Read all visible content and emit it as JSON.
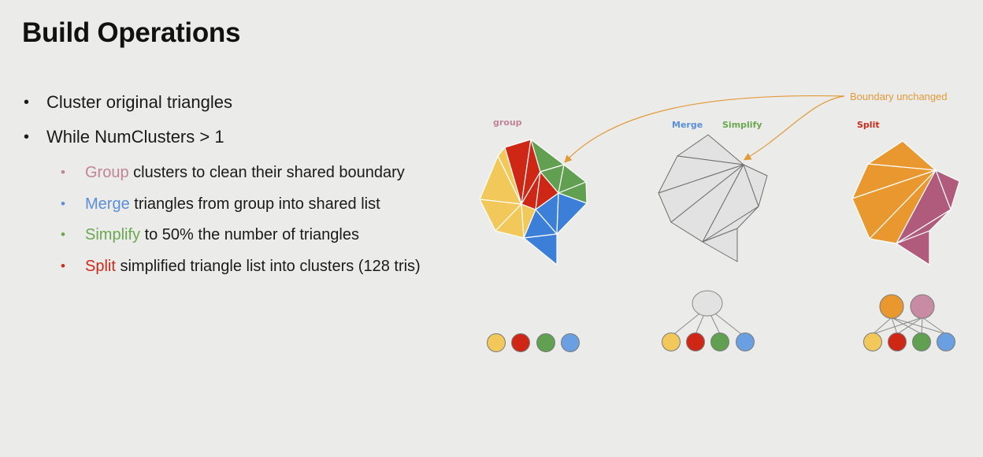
{
  "slide": {
    "title": "Build Operations",
    "bullets": [
      {
        "text": "Cluster original triangles"
      },
      {
        "text": "While NumClusters > 1"
      }
    ],
    "sub_bullets": [
      {
        "keyword": "Group",
        "rest": " clusters to clean their shared boundary",
        "color": "#c0849a"
      },
      {
        "keyword": "Merge",
        "rest": " triangles from group into shared list",
        "color": "#5b8fd8"
      },
      {
        "keyword": "Simplify",
        "rest": " to 50% the number of triangles",
        "color": "#6aa84f"
      },
      {
        "keyword": "Split",
        "rest": " simplified triangle list into clusters (128 tris)",
        "color": "#cc2a1a"
      }
    ]
  },
  "diagram": {
    "labels": {
      "group": "group",
      "merge": "Merge",
      "simplify": "Simplify",
      "split": "Split",
      "boundary": "Boundary unchanged"
    },
    "colors": {
      "yellow": "#f2c85a",
      "red": "#cf2716",
      "green": "#61a050",
      "blue": "#3c7fd8",
      "gray": "#e2e2e2",
      "orange": "#e8982f",
      "pink": "#b05a7c",
      "pink_node": "#c98ba4",
      "callout": "#e29a38"
    }
  }
}
